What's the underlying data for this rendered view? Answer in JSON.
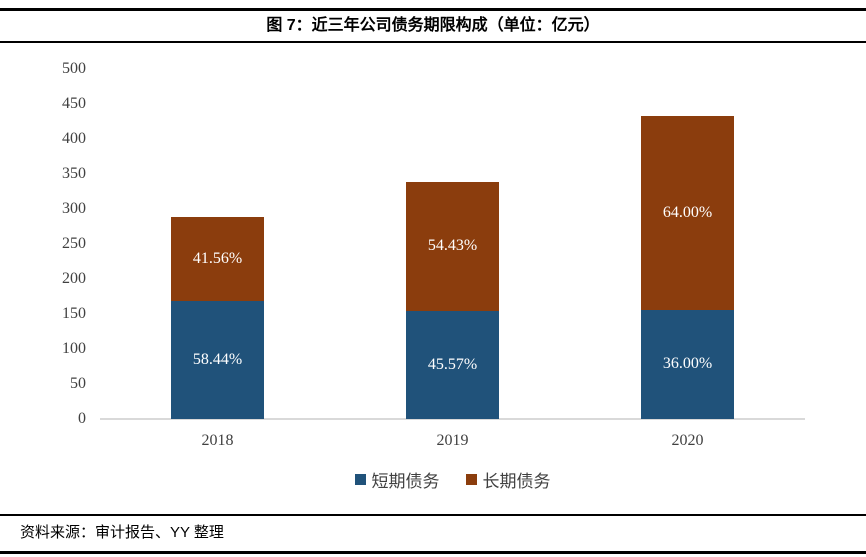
{
  "header": {
    "title": "图 7：近三年公司债务期限构成（单位：亿元）"
  },
  "footer": {
    "source": "资料来源：审计报告、YY 整理"
  },
  "chart_data": {
    "type": "bar",
    "stacked": true,
    "title": "图 7：近三年公司债务期限构成（单位：亿元）",
    "unit": "亿元",
    "categories": [
      "2018",
      "2019",
      "2020"
    ],
    "series": [
      {
        "name": "短期债务",
        "color": "#20527A",
        "values": [
          168.4,
          154.5,
          155.9
        ],
        "percent_labels": [
          "58.44%",
          "45.57%",
          "36.00%"
        ]
      },
      {
        "name": "长期债务",
        "color": "#8B3D0D",
        "values": [
          119.8,
          184.5,
          277.1
        ],
        "percent_labels": [
          "41.56%",
          "54.43%",
          "64.00%"
        ]
      }
    ],
    "totals_estimated": [
      288,
      339,
      433
    ],
    "y_axis": {
      "min": 0,
      "max": 500,
      "step": 50,
      "tick_labels": [
        "500",
        "450",
        "400",
        "350",
        "300",
        "250",
        "200",
        "150",
        "100",
        "50",
        "0"
      ]
    },
    "grid": false,
    "legend_position": "bottom",
    "axis_line_color": "#D9D9D9",
    "tick_color": "#404040",
    "data_label_color": "#FFFFFF"
  }
}
